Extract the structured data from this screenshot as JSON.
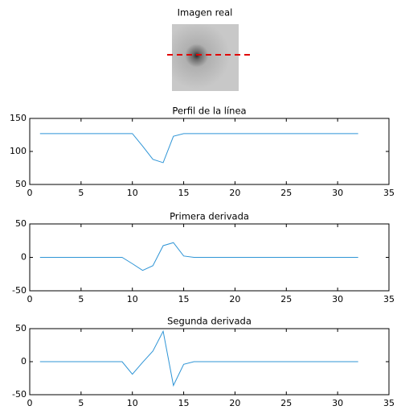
{
  "image": {
    "title": "Imagen real"
  },
  "chart_data": [
    {
      "type": "line",
      "title": "Perfil de la línea",
      "x": [
        1,
        2,
        3,
        4,
        5,
        6,
        7,
        8,
        9,
        10,
        11,
        12,
        13,
        14,
        15,
        16,
        17,
        18,
        19,
        20,
        21,
        22,
        23,
        24,
        25,
        26,
        27,
        28,
        29,
        30,
        31,
        32
      ],
      "series": [
        {
          "color": "#2f95d6",
          "values": [
            127,
            127,
            127,
            127,
            127,
            127,
            127,
            127,
            127,
            127,
            108,
            88,
            83,
            123,
            127,
            127,
            127,
            127,
            127,
            127,
            127,
            127,
            127,
            127,
            127,
            127,
            127,
            127,
            127,
            127,
            127,
            127
          ]
        }
      ],
      "xlim": [
        0,
        35
      ],
      "xticks": [
        0,
        5,
        10,
        15,
        20,
        25,
        30,
        35
      ],
      "ylim": [
        50,
        150
      ],
      "yticks": [
        50,
        100,
        150
      ]
    },
    {
      "type": "line",
      "title": "Primera derivada",
      "x": [
        1,
        2,
        3,
        4,
        5,
        6,
        7,
        8,
        9,
        10,
        11,
        12,
        13,
        14,
        15,
        16,
        17,
        18,
        19,
        20,
        21,
        22,
        23,
        24,
        25,
        26,
        27,
        28,
        29,
        30,
        31,
        32
      ],
      "series": [
        {
          "color": "#2f95d6",
          "values": [
            0,
            0,
            0,
            0,
            0,
            0,
            0,
            0,
            0,
            -9.5,
            -19.5,
            -12.5,
            17.5,
            22,
            2,
            0,
            0,
            0,
            0,
            0,
            0,
            0,
            0,
            0,
            0,
            0,
            0,
            0,
            0,
            0,
            0,
            0
          ]
        }
      ],
      "xlim": [
        0,
        35
      ],
      "xticks": [
        0,
        5,
        10,
        15,
        20,
        25,
        30,
        35
      ],
      "ylim": [
        -50,
        50
      ],
      "yticks": [
        -50,
        0,
        50
      ]
    },
    {
      "type": "line",
      "title": "Segunda derivada",
      "x": [
        1,
        2,
        3,
        4,
        5,
        6,
        7,
        8,
        9,
        10,
        11,
        12,
        13,
        14,
        15,
        16,
        17,
        18,
        19,
        20,
        21,
        22,
        23,
        24,
        25,
        26,
        27,
        28,
        29,
        30,
        31,
        32
      ],
      "series": [
        {
          "color": "#2f95d6",
          "values": [
            0,
            0,
            0,
            0,
            0,
            0,
            0,
            0,
            0,
            -19,
            -1,
            16,
            46,
            -36,
            -4,
            0,
            0,
            0,
            0,
            0,
            0,
            0,
            0,
            0,
            0,
            0,
            0,
            0,
            0,
            0,
            0,
            0
          ]
        }
      ],
      "xlim": [
        0,
        35
      ],
      "xticks": [
        0,
        5,
        10,
        15,
        20,
        25,
        30,
        35
      ],
      "ylim": [
        -50,
        50
      ],
      "yticks": [
        -50,
        0,
        50
      ]
    }
  ]
}
